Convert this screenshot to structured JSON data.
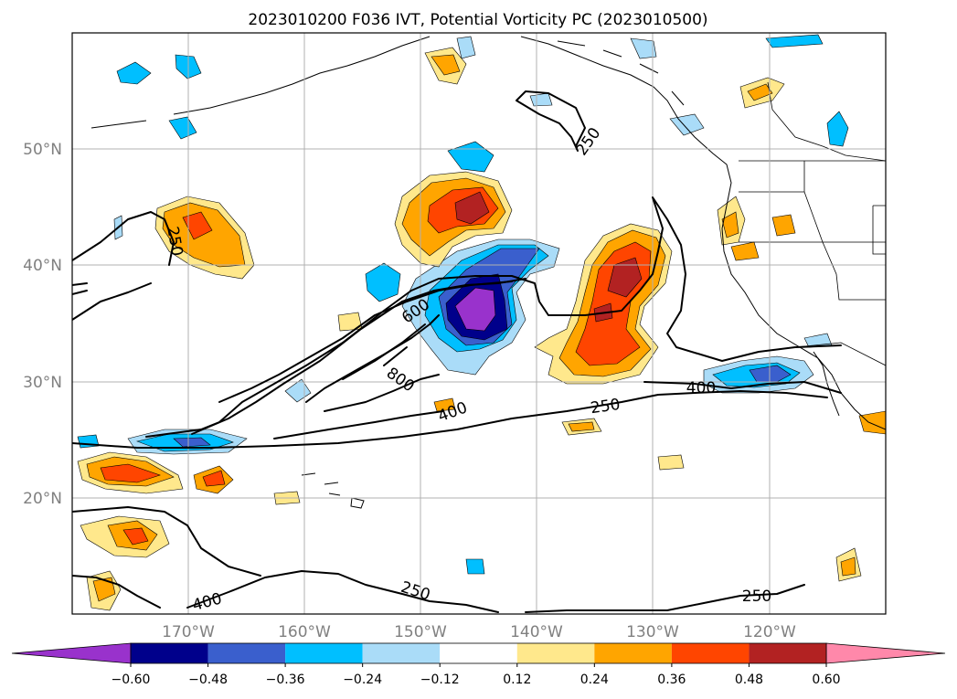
{
  "title": "2023010200 F036 IVT, Potential Vorticity PC (2023010500)",
  "lat_labels": [
    "50°N",
    "40°N",
    "30°N",
    "20°N"
  ],
  "lon_labels": [
    "170°W",
    "160°W",
    "150°W",
    "140°W",
    "130°W",
    "120°W"
  ],
  "ivt_contour_labels": [
    "250",
    "250",
    "600",
    "800",
    "400",
    "250",
    "400",
    "250",
    "400",
    "250"
  ],
  "colorbar": {
    "ticks": [
      "−0.60",
      "−0.48",
      "−0.36",
      "−0.24",
      "−0.12",
      "0.12",
      "0.24",
      "0.36",
      "0.48",
      "0.60"
    ],
    "under_color": "#9932cc",
    "over_color": "#ff88aa",
    "colors": [
      "#00008b",
      "#3a5fcd",
      "#00bfff",
      "#aadcf8",
      "#ffffff",
      "#ffe88c",
      "#ffa500",
      "#ff4500",
      "#b22222"
    ]
  },
  "map": {
    "projection": "cylindrical",
    "lon_range": [
      -180,
      -110
    ],
    "lat_range": [
      10,
      60
    ],
    "gridlines": true
  }
}
